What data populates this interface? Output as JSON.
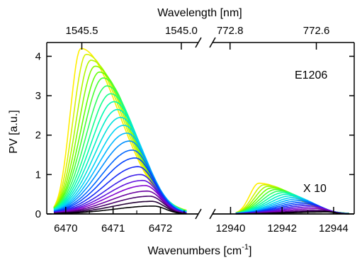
{
  "chart_data": {
    "type": "line",
    "title": "",
    "xlabel_bottom": "Wavenumbers [cm",
    "xlabel_bottom_sup": "-1",
    "xlabel_bottom_end": "]",
    "xlabel_top": "Wavelength [nm]",
    "ylabel": "PV [a.u.]",
    "ylim": [
      0,
      4.35
    ],
    "yticks": [
      0,
      1,
      2,
      3,
      4
    ],
    "left_panel": {
      "xlim": [
        6469.6,
        6472.8
      ],
      "xticks": [
        6470,
        6471,
        6472
      ],
      "top_ticks": [
        {
          "label": "1545.5",
          "wavenumber": 6470.34
        },
        {
          "label": "1545.0",
          "wavenumber": 6472.44
        }
      ],
      "series_count": 24,
      "peak_x": [
        6470.32,
        6470.43,
        6470.53,
        6470.62,
        6470.71,
        6470.79,
        6470.87,
        6470.95,
        6471.02,
        6471.09,
        6471.16,
        6471.23,
        6471.29,
        6471.35,
        6471.41,
        6471.47,
        6471.53,
        6471.58,
        6471.63,
        6471.68,
        6471.73,
        6471.78,
        6471.82,
        6471.86
      ],
      "peak_y": [
        4.2,
        4.05,
        3.9,
        3.75,
        3.6,
        3.45,
        3.25,
        3.05,
        2.85,
        2.65,
        2.45,
        2.25,
        2.05,
        1.85,
        1.62,
        1.42,
        1.2,
        1.0,
        0.85,
        0.72,
        0.58,
        0.45,
        0.32,
        0.2
      ],
      "onset_x": 6469.75,
      "end_x": 6472.55
    },
    "right_panel": {
      "xlim": [
        12939.3,
        12944.8
      ],
      "xticks": [
        12940,
        12942,
        12944
      ],
      "top_ticks": [
        {
          "label": "772.8",
          "wavenumber": 12939.98
        },
        {
          "label": "772.6",
          "wavenumber": 12943.33
        }
      ],
      "scale_note": "X 10",
      "series_count": 20,
      "peak_x": [
        12941.1,
        12941.3,
        12941.45,
        12941.6,
        12941.75,
        12941.9,
        12942.05,
        12942.2,
        12942.35,
        12942.5,
        12942.62,
        12942.75,
        12942.88,
        12943.0,
        12943.12,
        12943.25,
        12943.38,
        12943.5,
        12943.62,
        12943.75
      ],
      "peak_y": [
        0.78,
        0.74,
        0.7,
        0.66,
        0.62,
        0.58,
        0.54,
        0.5,
        0.46,
        0.42,
        0.38,
        0.34,
        0.3,
        0.26,
        0.22,
        0.18,
        0.14,
        0.1,
        0.07,
        0.05
      ],
      "onset_x": 12940.2,
      "end_x": 12944.6
    },
    "annotation": "E1206",
    "colormap": [
      "#ffee00",
      "#66ff00",
      "#00ffaa",
      "#00ccff",
      "#0033ff",
      "#8800cc",
      "#000000"
    ],
    "grid": false,
    "legend": "none"
  }
}
